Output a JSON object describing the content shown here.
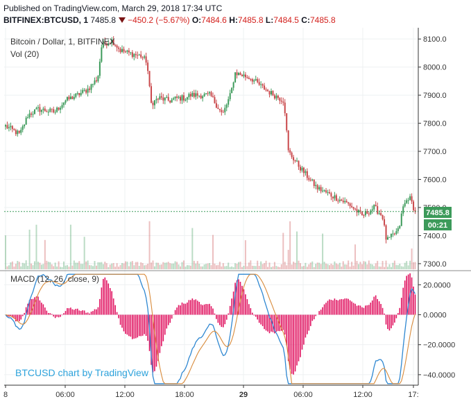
{
  "header": {
    "published": "Published on TradingView.com, March 29, 2018 17:34 UTC",
    "symbol": "BITFINEX:BTCUSD, 1",
    "last": "7485.8",
    "change": "−450.2 (−5.67%)",
    "o_label": "O:",
    "o_value": "7484.6",
    "h_label": "H:",
    "h_value": "7485.8",
    "l_label": "L:",
    "l_value": "7484.5",
    "c_label": "C:",
    "c_value": "7485.8"
  },
  "pane_labels": {
    "main_title": "Bitcoin / Dollar, 1, BITFINEX",
    "volume": "Vol (20)",
    "macd": "MACD (12, 26, close, 9)",
    "watermark": "BTCUSD chart by TradingView"
  },
  "price_badge": {
    "value": "7485.8",
    "countdown": "00:21"
  },
  "colors": {
    "up": "#3c9a5a",
    "down": "#c9474a",
    "macd_line": "#2e87d1",
    "signal_line": "#d88a3a",
    "histogram": "#e0115f",
    "last_line": "#3c9a5a",
    "watermark": "#2ea3dc",
    "grid": "#eef0f2",
    "axis": "#333333"
  },
  "chart_data": [
    {
      "type": "candlestick",
      "title": "Bitcoin / Dollar, 1, BITFINEX",
      "x_tick_labels": [
        "8",
        "06:00",
        "12:00",
        "18:00",
        "29",
        "06:00",
        "12:00",
        "17:"
      ],
      "y_ticks": [
        8100.0,
        8000.0,
        7900.0,
        7800.0,
        7700.0,
        7600.0,
        7500.0,
        7400.0,
        7300.0
      ],
      "ylim": [
        7280,
        8140
      ],
      "last_price": 7485.8,
      "path_ohlc_checkpoints": [
        [
          0,
          7790
        ],
        [
          0.035,
          7760
        ],
        [
          0.055,
          7830
        ],
        [
          0.08,
          7850
        ],
        [
          0.12,
          7840
        ],
        [
          0.145,
          7880
        ],
        [
          0.175,
          7900
        ],
        [
          0.2,
          7920
        ],
        [
          0.225,
          7960
        ],
        [
          0.235,
          8080
        ],
        [
          0.26,
          8095
        ],
        [
          0.28,
          8060
        ],
        [
          0.3,
          8050
        ],
        [
          0.33,
          8040
        ],
        [
          0.345,
          8020
        ],
        [
          0.355,
          7870
        ],
        [
          0.375,
          7890
        ],
        [
          0.4,
          7880
        ],
        [
          0.42,
          7890
        ],
        [
          0.44,
          7890
        ],
        [
          0.45,
          7900
        ],
        [
          0.5,
          7900
        ],
        [
          0.53,
          7830
        ],
        [
          0.55,
          7905
        ],
        [
          0.56,
          7980
        ],
        [
          0.6,
          7960
        ],
        [
          0.625,
          7930
        ],
        [
          0.65,
          7905
        ],
        [
          0.68,
          7880
        ],
        [
          0.69,
          7700
        ],
        [
          0.72,
          7640
        ],
        [
          0.76,
          7570
        ],
        [
          0.8,
          7540
        ],
        [
          0.84,
          7510
        ],
        [
          0.87,
          7470
        ],
        [
          0.9,
          7500
        ],
        [
          0.92,
          7470
        ],
        [
          0.93,
          7380
        ],
        [
          0.96,
          7420
        ],
        [
          0.97,
          7500
        ],
        [
          0.985,
          7540
        ],
        [
          1.0,
          7485.8
        ]
      ]
    },
    {
      "type": "bar",
      "title": "Vol (20)",
      "series": [
        {
          "name": "Vol (20)"
        }
      ]
    },
    {
      "type": "line",
      "title": "MACD (12, 26, close, 9)",
      "y_ticks": [
        20.0,
        0.0,
        -20.0,
        -40.0
      ],
      "y_tick_labels": [
        "20.0000",
        "0.0000",
        "−20.0000",
        "−40.0000"
      ],
      "ylim": [
        -47,
        28
      ],
      "series": [
        {
          "name": "MACD"
        },
        {
          "name": "Signal"
        },
        {
          "name": "Histogram"
        }
      ]
    }
  ]
}
